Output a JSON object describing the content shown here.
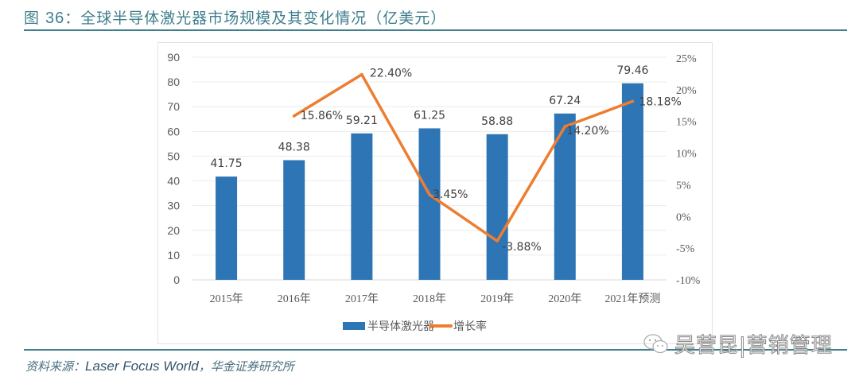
{
  "header": {
    "figure_label": "图 ",
    "figure_number": "36",
    "title_text": "：全球半导体激光器市场规模及其变化情况（亿美元）"
  },
  "source": {
    "prefix": "资料来源：",
    "english": "Laser Focus World",
    "suffix": "，华金证券研究所"
  },
  "watermark": {
    "icon": "wechat-icon",
    "text": "吴营昆|营销管理"
  },
  "colors": {
    "accent": "#3f7f8c",
    "bar": "#2e75b6",
    "line": "#ed7d31"
  },
  "chart_data": {
    "type": "bar",
    "title": "全球半导体激光器市场规模及其变化情况（亿美元）",
    "categories": [
      "2015年",
      "2016年",
      "2017年",
      "2018年",
      "2019年",
      "2020年",
      "2021年预测"
    ],
    "series": [
      {
        "name": "半导体激光器",
        "type": "bar",
        "axis": "left",
        "values": [
          41.75,
          48.38,
          59.21,
          61.25,
          58.88,
          67.24,
          79.46
        ],
        "labels": [
          "41.75",
          "48.38",
          "59.21",
          "61.25",
          "58.88",
          "67.24",
          "79.46"
        ]
      },
      {
        "name": "增长率",
        "type": "line",
        "axis": "right",
        "values": [
          null,
          15.86,
          22.4,
          3.45,
          -3.88,
          14.2,
          18.18
        ],
        "labels": [
          "",
          "15.86%",
          "22.40%",
          "3.45%",
          "-3.88%",
          "14.20%",
          "18.18%"
        ]
      }
    ],
    "left_axis": {
      "ylim": [
        0,
        90
      ],
      "ticks": [
        "0",
        "10",
        "20",
        "30",
        "40",
        "50",
        "60",
        "70",
        "80",
        "90"
      ]
    },
    "right_axis": {
      "ylim": [
        -10,
        25
      ],
      "ticks": [
        "-10%",
        "-5%",
        "0%",
        "5%",
        "10%",
        "15%",
        "20%",
        "25%"
      ]
    },
    "grid": true,
    "legend": {
      "position": "bottom",
      "entries": [
        "半导体激光器",
        "增长率"
      ]
    },
    "xlabel": "",
    "ylabel": ""
  }
}
